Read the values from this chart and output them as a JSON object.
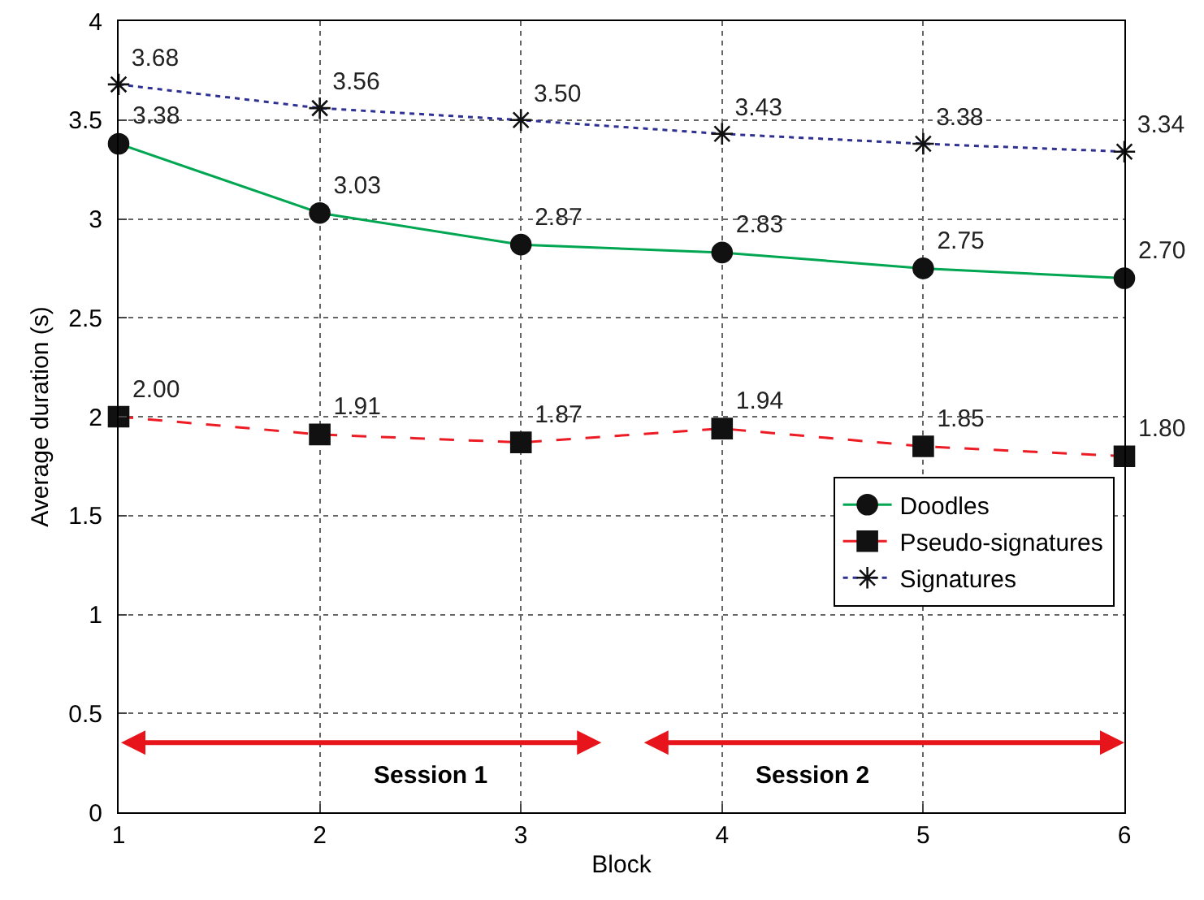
{
  "chart_data": {
    "type": "line",
    "xlabel": "Block",
    "ylabel": "Average duration (s)",
    "x": [
      1,
      2,
      3,
      4,
      5,
      6
    ],
    "series": [
      {
        "name": "Doodles",
        "color": "#00a651",
        "marker": "circle",
        "line_style": "solid",
        "values": [
          3.38,
          3.03,
          2.87,
          2.83,
          2.75,
          2.7
        ],
        "value_labels": [
          "3.38",
          "3.03",
          "2.87",
          "2.83",
          "2.75",
          "2.70"
        ]
      },
      {
        "name": "Pseudo-signatures",
        "color": "#ed1c24",
        "marker": "square",
        "line_style": "dashed",
        "values": [
          2.0,
          1.91,
          1.87,
          1.94,
          1.85,
          1.8
        ],
        "value_labels": [
          "2.00",
          "1.91",
          "1.87",
          "1.94",
          "1.85",
          "1.80"
        ]
      },
      {
        "name": "Signatures",
        "color": "#2e3192",
        "marker": "cross",
        "line_style": "dotted",
        "values": [
          3.68,
          3.56,
          3.5,
          3.43,
          3.38,
          3.34
        ],
        "value_labels": [
          "3.68",
          "3.56",
          "3.50",
          "3.43",
          "3.38",
          "3.34"
        ]
      }
    ],
    "xlim": [
      1,
      6
    ],
    "xticks": [
      1,
      2,
      3,
      4,
      5,
      6
    ],
    "ylim": [
      0,
      4
    ],
    "yticks": [
      0,
      0.5,
      1,
      1.5,
      2,
      2.5,
      3,
      3.5,
      4
    ],
    "grid": true,
    "legend": "bottom right",
    "annotations": [
      "Session 1",
      "Session 2"
    ]
  }
}
